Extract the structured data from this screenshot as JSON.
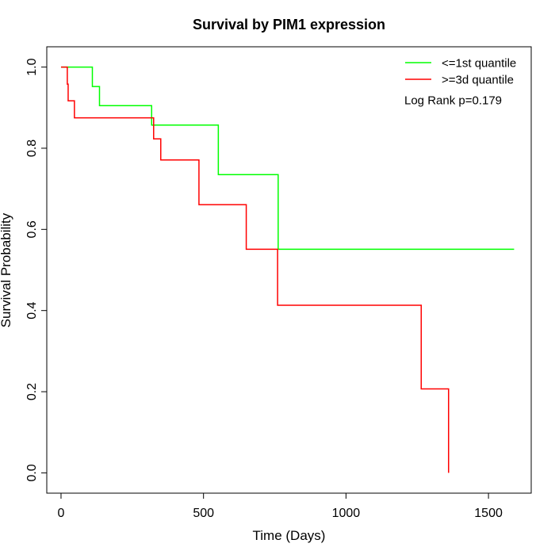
{
  "chart_data": {
    "type": "line",
    "title": "Survival by PIM1 expression",
    "xlabel": "Time (Days)",
    "ylabel": "Survival Probability",
    "xlim": [
      -50,
      1650
    ],
    "ylim": [
      -0.05,
      1.05
    ],
    "x_ticks": [
      0,
      500,
      1000,
      1500
    ],
    "y_ticks": [
      0.0,
      0.2,
      0.4,
      0.6,
      0.8,
      1.0
    ],
    "x_tick_labels": [
      "0",
      "500",
      "1000",
      "1500"
    ],
    "y_tick_labels": [
      "0.0",
      "0.2",
      "0.4",
      "0.6",
      "0.8",
      "1.0"
    ],
    "grid": false,
    "legend_position": "top-right",
    "annotation": "Log Rank p=0.179",
    "series": [
      {
        "name": "<=1st quantile",
        "color": "#00ff00",
        "step": true,
        "x": [
          0,
          110,
          135,
          318,
          552,
          762,
          1590
        ],
        "y": [
          1.0,
          0.952,
          0.905,
          0.857,
          0.735,
          0.551,
          0.551
        ]
      },
      {
        "name": ">=3d quantile",
        "color": "#ff0000",
        "step": true,
        "x": [
          0,
          22,
          25,
          47,
          325,
          350,
          484,
          650,
          760,
          1264,
          1360,
          1360
        ],
        "y": [
          1.0,
          0.958,
          0.917,
          0.875,
          0.823,
          0.771,
          0.661,
          0.551,
          0.413,
          0.207,
          0.0,
          0.0
        ]
      }
    ]
  }
}
